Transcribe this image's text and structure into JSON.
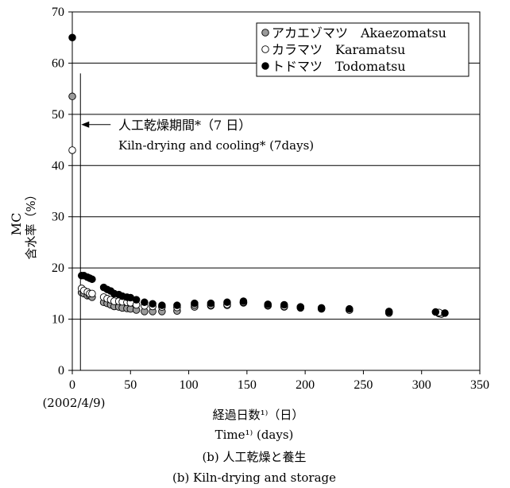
{
  "chart_data": {
    "type": "scatter",
    "title": "",
    "xlabel_jp": "経過日数¹⁾（日）",
    "xlabel_en": "Time¹⁾ (days)",
    "ylabel_en": "MC",
    "ylabel_jp": "含水率（%）",
    "x_start_note": "(2002/4/9)",
    "caption_jp": "(b) 人工乾燥と養生",
    "caption_en": "(b) Kiln-drying and storage",
    "xlim": [
      0,
      350
    ],
    "ylim": [
      0,
      70
    ],
    "xticks": [
      0,
      50,
      100,
      150,
      200,
      250,
      300,
      350
    ],
    "yticks": [
      0,
      10,
      20,
      30,
      40,
      50,
      60,
      70
    ],
    "grid": "horizontal",
    "legend_position": "top-right",
    "annotation_jp": "人工乾燥期間*（7 日）",
    "annotation_en": "Kiln-drying and cooling* (7days)",
    "annotation_line_x": 7,
    "series": [
      {
        "name": "アカエゾマツ　Akaezomatsu",
        "marker": "gray",
        "color": "#999999",
        "x": [
          0,
          8,
          10,
          13,
          15,
          17,
          27,
          30,
          33,
          36,
          40,
          43,
          47,
          50,
          55,
          62,
          69,
          77,
          90,
          105,
          119,
          133,
          147,
          168,
          182,
          196,
          214,
          238,
          272,
          315,
          317
        ],
        "y": [
          53.5,
          15.2,
          15.0,
          14.6,
          14.6,
          14.3,
          13.3,
          13.1,
          12.8,
          12.5,
          12.4,
          12.2,
          12.1,
          12.0,
          11.8,
          11.5,
          11.5,
          11.5,
          11.6,
          12.4,
          12.6,
          12.7,
          13.2,
          12.6,
          12.4,
          12.2,
          12.0,
          11.8,
          11.2,
          11.1,
          11.0
        ]
      },
      {
        "name": "カラマツ　Karamatsu",
        "marker": "open",
        "color": "#ffffff",
        "x": [
          0,
          8,
          10,
          13,
          15,
          17,
          27,
          30,
          33,
          36,
          40,
          43,
          47,
          50,
          55,
          62,
          69,
          77,
          90,
          105,
          119,
          133,
          147,
          168,
          182,
          196,
          214,
          238,
          272,
          315
        ],
        "y": [
          43,
          16.0,
          15.6,
          15.3,
          15.0,
          15.0,
          14.3,
          14.0,
          13.8,
          13.5,
          13.5,
          13.4,
          13.3,
          13.2,
          12.8,
          12.6,
          12.5,
          12.4,
          12.3,
          12.8,
          12.8,
          12.9,
          13.3,
          12.7,
          12.5,
          12.3,
          12.1,
          11.8,
          11.5,
          11.3
        ]
      },
      {
        "name": "トドマツ　Todomatsu",
        "marker": "filled",
        "color": "#000000",
        "x": [
          0,
          8,
          10,
          13,
          15,
          17,
          27,
          30,
          33,
          36,
          40,
          43,
          47,
          50,
          55,
          62,
          69,
          77,
          90,
          105,
          119,
          133,
          147,
          168,
          182,
          196,
          214,
          238,
          272,
          312,
          320
        ],
        "y": [
          65,
          18.5,
          18.5,
          18.2,
          18.0,
          17.8,
          16.2,
          15.8,
          15.5,
          15.0,
          14.8,
          14.5,
          14.3,
          14.2,
          13.8,
          13.3,
          13.0,
          12.7,
          12.7,
          13.1,
          13.1,
          13.3,
          13.5,
          12.9,
          12.8,
          12.4,
          12.2,
          12.0,
          11.4,
          11.4,
          11.2
        ]
      }
    ]
  }
}
